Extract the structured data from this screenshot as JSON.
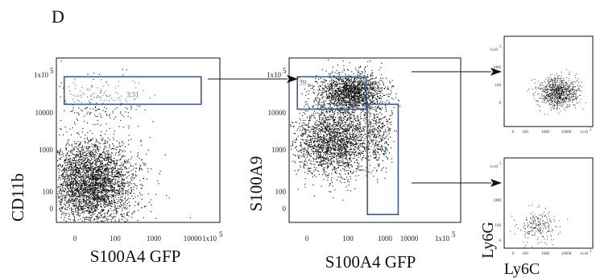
{
  "panel_letter": "D",
  "colors": {
    "dots": "#111111",
    "gate": "#3e5a8a",
    "gate_label": "#4a6fa5",
    "gated_dots": "#4a6fa5"
  },
  "chart_data": [
    {
      "type": "scatter",
      "plot": "flow-cytometry-dot-plot",
      "xlabel": "S100A4 GFP",
      "ylabel": "CD11b",
      "x_ticks": [
        "0",
        "100",
        "1000",
        "10000",
        "1x10"
      ],
      "y_ticks": [
        "1x10",
        "10000",
        "1000",
        "100",
        "0"
      ],
      "x_tick_superscript": "5",
      "y_tick_superscript": "5",
      "gates": [
        {
          "label": "3.31",
          "x_range": [
            -100,
            100000
          ],
          "y_range": [
            20000,
            100000
          ]
        }
      ],
      "populations": [
        {
          "center": [
            150,
            200
          ],
          "spread_decades": [
            0.55,
            0.55
          ],
          "events": 3500
        },
        {
          "center": [
            200,
            25000
          ],
          "spread_decades": [
            0.6,
            0.35
          ],
          "events": 220
        }
      ]
    },
    {
      "type": "scatter",
      "plot": "flow-cytometry-dot-plot",
      "xlabel": "S100A4 GFP",
      "ylabel": "S100A9",
      "x_ticks": [
        "0",
        "100",
        "1000",
        "10000",
        "1x10"
      ],
      "y_ticks": [
        "1x10",
        "10000",
        "1000",
        "100",
        "0"
      ],
      "x_tick_superscript": "5",
      "y_tick_superscript": "5",
      "gates": [
        {
          "label": "39",
          "x_range": [
            -100,
            1500
          ],
          "y_range": [
            15000,
            100000
          ]
        },
        {
          "label": "3",
          "x_range": [
            1600,
            9000
          ],
          "y_range": [
            0,
            20000
          ]
        }
      ],
      "populations": [
        {
          "center": [
            600,
            40000
          ],
          "spread_decades": [
            0.4,
            0.25
          ],
          "events": 1600
        },
        {
          "center": [
            250,
            2500
          ],
          "spread_decades": [
            0.5,
            0.45
          ],
          "events": 2200
        },
        {
          "center": [
            3000,
            4000
          ],
          "spread_decades": [
            0.15,
            0.45
          ],
          "events": 250
        }
      ]
    },
    {
      "type": "scatter",
      "plot": "flow-cytometry-dot-plot",
      "xlabel": "",
      "ylabel": "",
      "x_ticks": [
        "0",
        "100",
        "1000",
        "10000",
        "1x10"
      ],
      "y_ticks": [
        "1x10",
        "1000",
        "100",
        "0"
      ],
      "x_tick_superscript": "5",
      "y_tick_superscript": "5",
      "populations": [
        {
          "center": [
            7000,
            800
          ],
          "spread_decades": [
            0.45,
            0.35
          ],
          "events": 900
        }
      ]
    },
    {
      "type": "scatter",
      "plot": "flow-cytometry-dot-plot",
      "xlabel": "Ly6C",
      "ylabel": "Ly6G",
      "x_ticks": [
        "0",
        "100",
        "1000",
        "10000",
        "1x10"
      ],
      "y_ticks": [
        "1x10",
        "1000",
        "100",
        "0"
      ],
      "x_tick_superscript": "5",
      "y_tick_superscript": "5",
      "populations": [
        {
          "center": [
            800,
            200
          ],
          "spread_decades": [
            0.5,
            0.4
          ],
          "events": 220
        }
      ]
    }
  ]
}
